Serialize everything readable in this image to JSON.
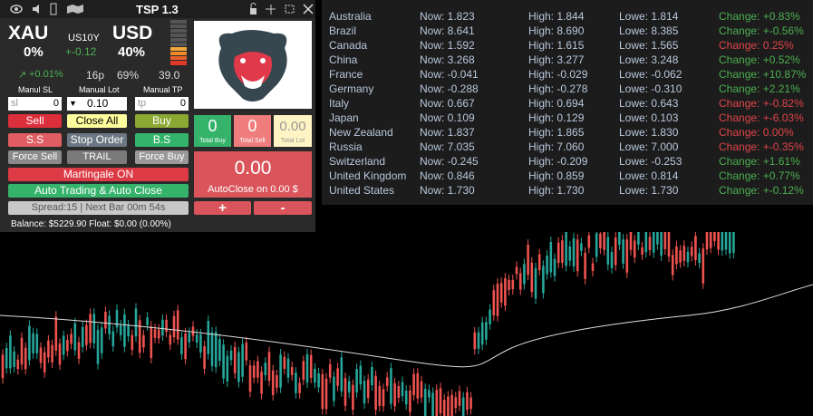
{
  "panel": {
    "title": "TSP 1.3",
    "xau": "XAU",
    "xau_pct": "0%",
    "us10y": "US10Y",
    "us10y_change": "+-0.12",
    "usd": "USD",
    "usd_pct": "40%",
    "change": "+0.01%",
    "pips": "16p",
    "ratio": "69%",
    "value": "39.0",
    "labels": [
      "Manul SL",
      "Manual Lot",
      "Manual TP"
    ],
    "inputs": {
      "sl_placeholder": "sl",
      "sl": "0",
      "lot": "0.10",
      "tp_placeholder": "tp",
      "tp": "0"
    },
    "buttons": {
      "sell": "Sell",
      "close_all": "Close All",
      "buy": "Buy",
      "ss": "S.S",
      "stop_order": "Stop Order",
      "bs": "B.S",
      "force_sell": "Force Sell",
      "trail": "TRAIL",
      "force_buy": "Force Buy",
      "martingale": "Martingale ON",
      "auto": "Auto Trading & Auto Close",
      "spread": "Spread:15 | Next Bar 00m 54s"
    },
    "balance": "Balance: $5229.90  Float: $0.00 (0.00%)",
    "counters": [
      {
        "value": "0",
        "label": "Total Buy"
      },
      {
        "value": "0",
        "label": "Total Sell"
      },
      {
        "value": "0.00",
        "label": "Total Lot"
      }
    ],
    "autoclose": {
      "value": "0.00",
      "label": "AutoClose on 0.00 $",
      "plus": "+",
      "minus": "-"
    }
  },
  "table": {
    "rows": [
      {
        "country": "Australia",
        "now": "Now: 1.823",
        "high": "High: 1.844",
        "low": "Lowe: 1.814",
        "change": "Change: +0.83%",
        "color": "#4caf50"
      },
      {
        "country": "Brazil",
        "now": "Now: 8.641",
        "high": "High: 8.690",
        "low": "Lowe: 8.385",
        "change": "Change: +-0.56%",
        "color": "#4caf50"
      },
      {
        "country": "Canada",
        "now": "Now: 1.592",
        "high": "High: 1.615",
        "low": "Lowe: 1.565",
        "change": "Change: 0.25%",
        "color": "#e0444a"
      },
      {
        "country": "China",
        "now": "Now: 3.268",
        "high": "High: 3.277",
        "low": "Lowe: 3.248",
        "change": "Change: +0.52%",
        "color": "#4caf50"
      },
      {
        "country": "France",
        "now": "Now: -0.041",
        "high": "High: -0.029",
        "low": "Lowe: -0.062",
        "change": "Change: +10.87%",
        "color": "#4caf50"
      },
      {
        "country": "Germany",
        "now": "Now: -0.288",
        "high": "High: -0.278",
        "low": "Lowe: -0.310",
        "change": "Change: +2.21%",
        "color": "#4caf50"
      },
      {
        "country": "Italy",
        "now": "Now: 0.667",
        "high": "High: 0.694",
        "low": "Lowe: 0.643",
        "change": "Change: +-0.82%",
        "color": "#e0444a"
      },
      {
        "country": "Japan",
        "now": "Now: 0.109",
        "high": "High: 0.129",
        "low": "Lowe: 0.103",
        "change": "Change: +-6.03%",
        "color": "#e0444a"
      },
      {
        "country": "New Zealand",
        "now": "Now: 1.837",
        "high": "High: 1.865",
        "low": "Lowe: 1.830",
        "change": "Change: 0.00%",
        "color": "#e0444a"
      },
      {
        "country": "Russia",
        "now": "Now: 7.035",
        "high": "High: 7.060",
        "low": "Lowe: 7.000",
        "change": "Change: +-0.35%",
        "color": "#e0444a"
      },
      {
        "country": "Switzerland",
        "now": "Now: -0.245",
        "high": "High: -0.209",
        "low": "Lowe: -0.253",
        "change": "Change: +1.61%",
        "color": "#4caf50"
      },
      {
        "country": "United Kingdom",
        "now": "Now: 0.846",
        "high": "High: 0.859",
        "low": "Lowe: 0.814",
        "change": "Change: +0.77%",
        "color": "#4caf50"
      },
      {
        "country": "United States",
        "now": "Now: 1.730",
        "high": "High: 1.730",
        "low": "Lowe: 1.730",
        "change": "Change: +-0.12%",
        "color": "#4caf50"
      }
    ]
  }
}
